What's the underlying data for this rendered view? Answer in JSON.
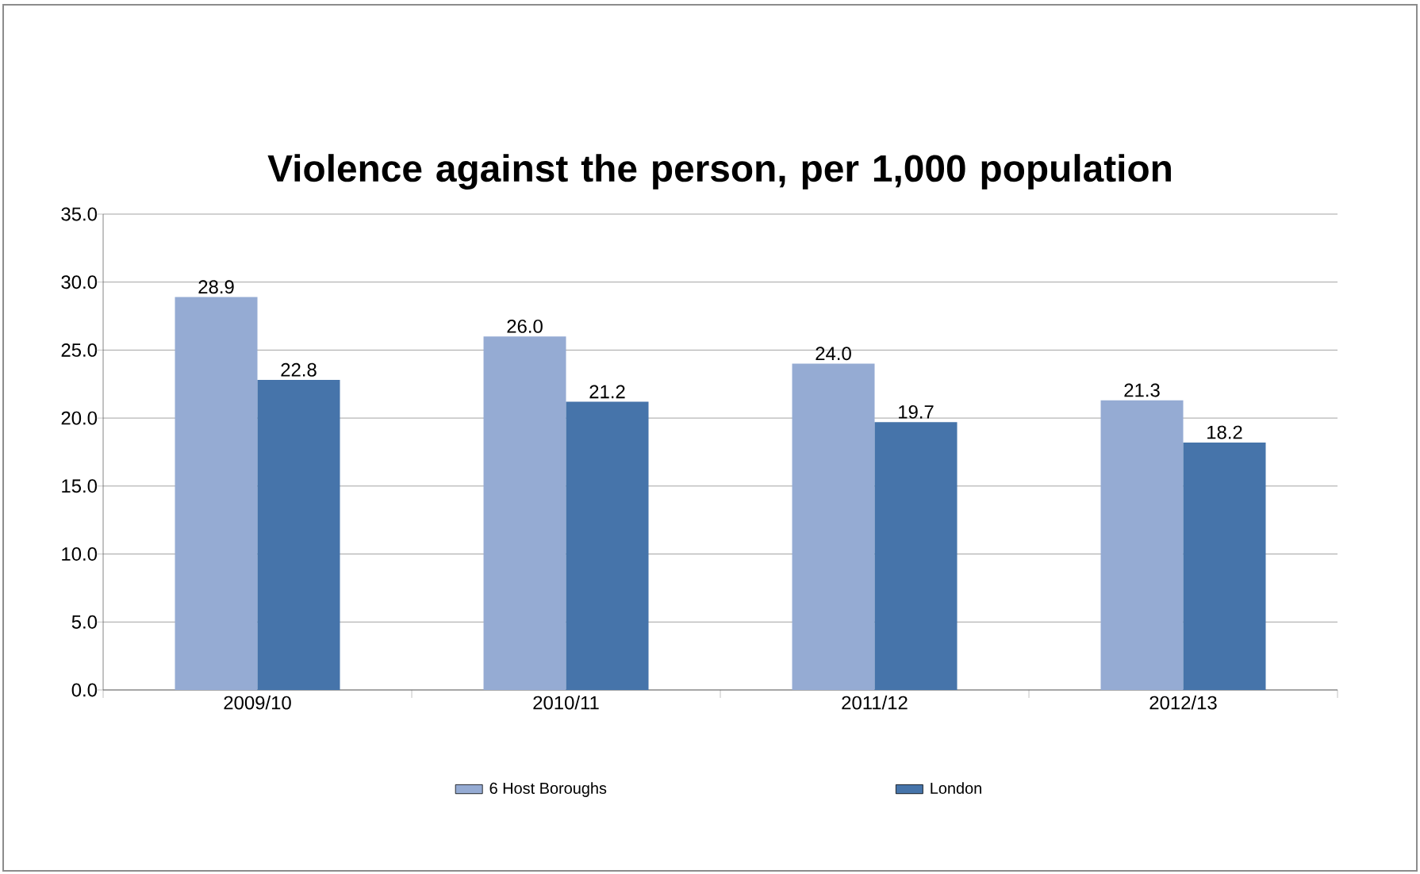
{
  "chart_data": {
    "type": "bar",
    "title": "Violence against the person, per 1,000 population",
    "categories": [
      "2009/10",
      "2010/11",
      "2011/12",
      "2012/13"
    ],
    "series": [
      {
        "name": "6 Host Boroughs",
        "color": "#95abd3",
        "values": [
          28.9,
          26.0,
          24.0,
          21.3
        ],
        "value_labels": [
          "28.9",
          "26.0",
          "24.0",
          "21.3"
        ]
      },
      {
        "name": "London",
        "color": "#4674aa",
        "values": [
          22.8,
          21.2,
          19.7,
          18.2
        ],
        "value_labels": [
          "22.8",
          "21.2",
          "19.7",
          "18.2"
        ]
      }
    ],
    "ylim": [
      0,
      35
    ],
    "yticks": [
      {
        "value": 0,
        "label": "0.0"
      },
      {
        "value": 5,
        "label": "5.0"
      },
      {
        "value": 10,
        "label": "10.0"
      },
      {
        "value": 15,
        "label": "15.0"
      },
      {
        "value": 20,
        "label": "20.0"
      },
      {
        "value": 25,
        "label": "25.0"
      },
      {
        "value": 30,
        "label": "30.0"
      },
      {
        "value": 35,
        "label": "35.0"
      }
    ],
    "grid": "y",
    "legend": "bottom"
  }
}
